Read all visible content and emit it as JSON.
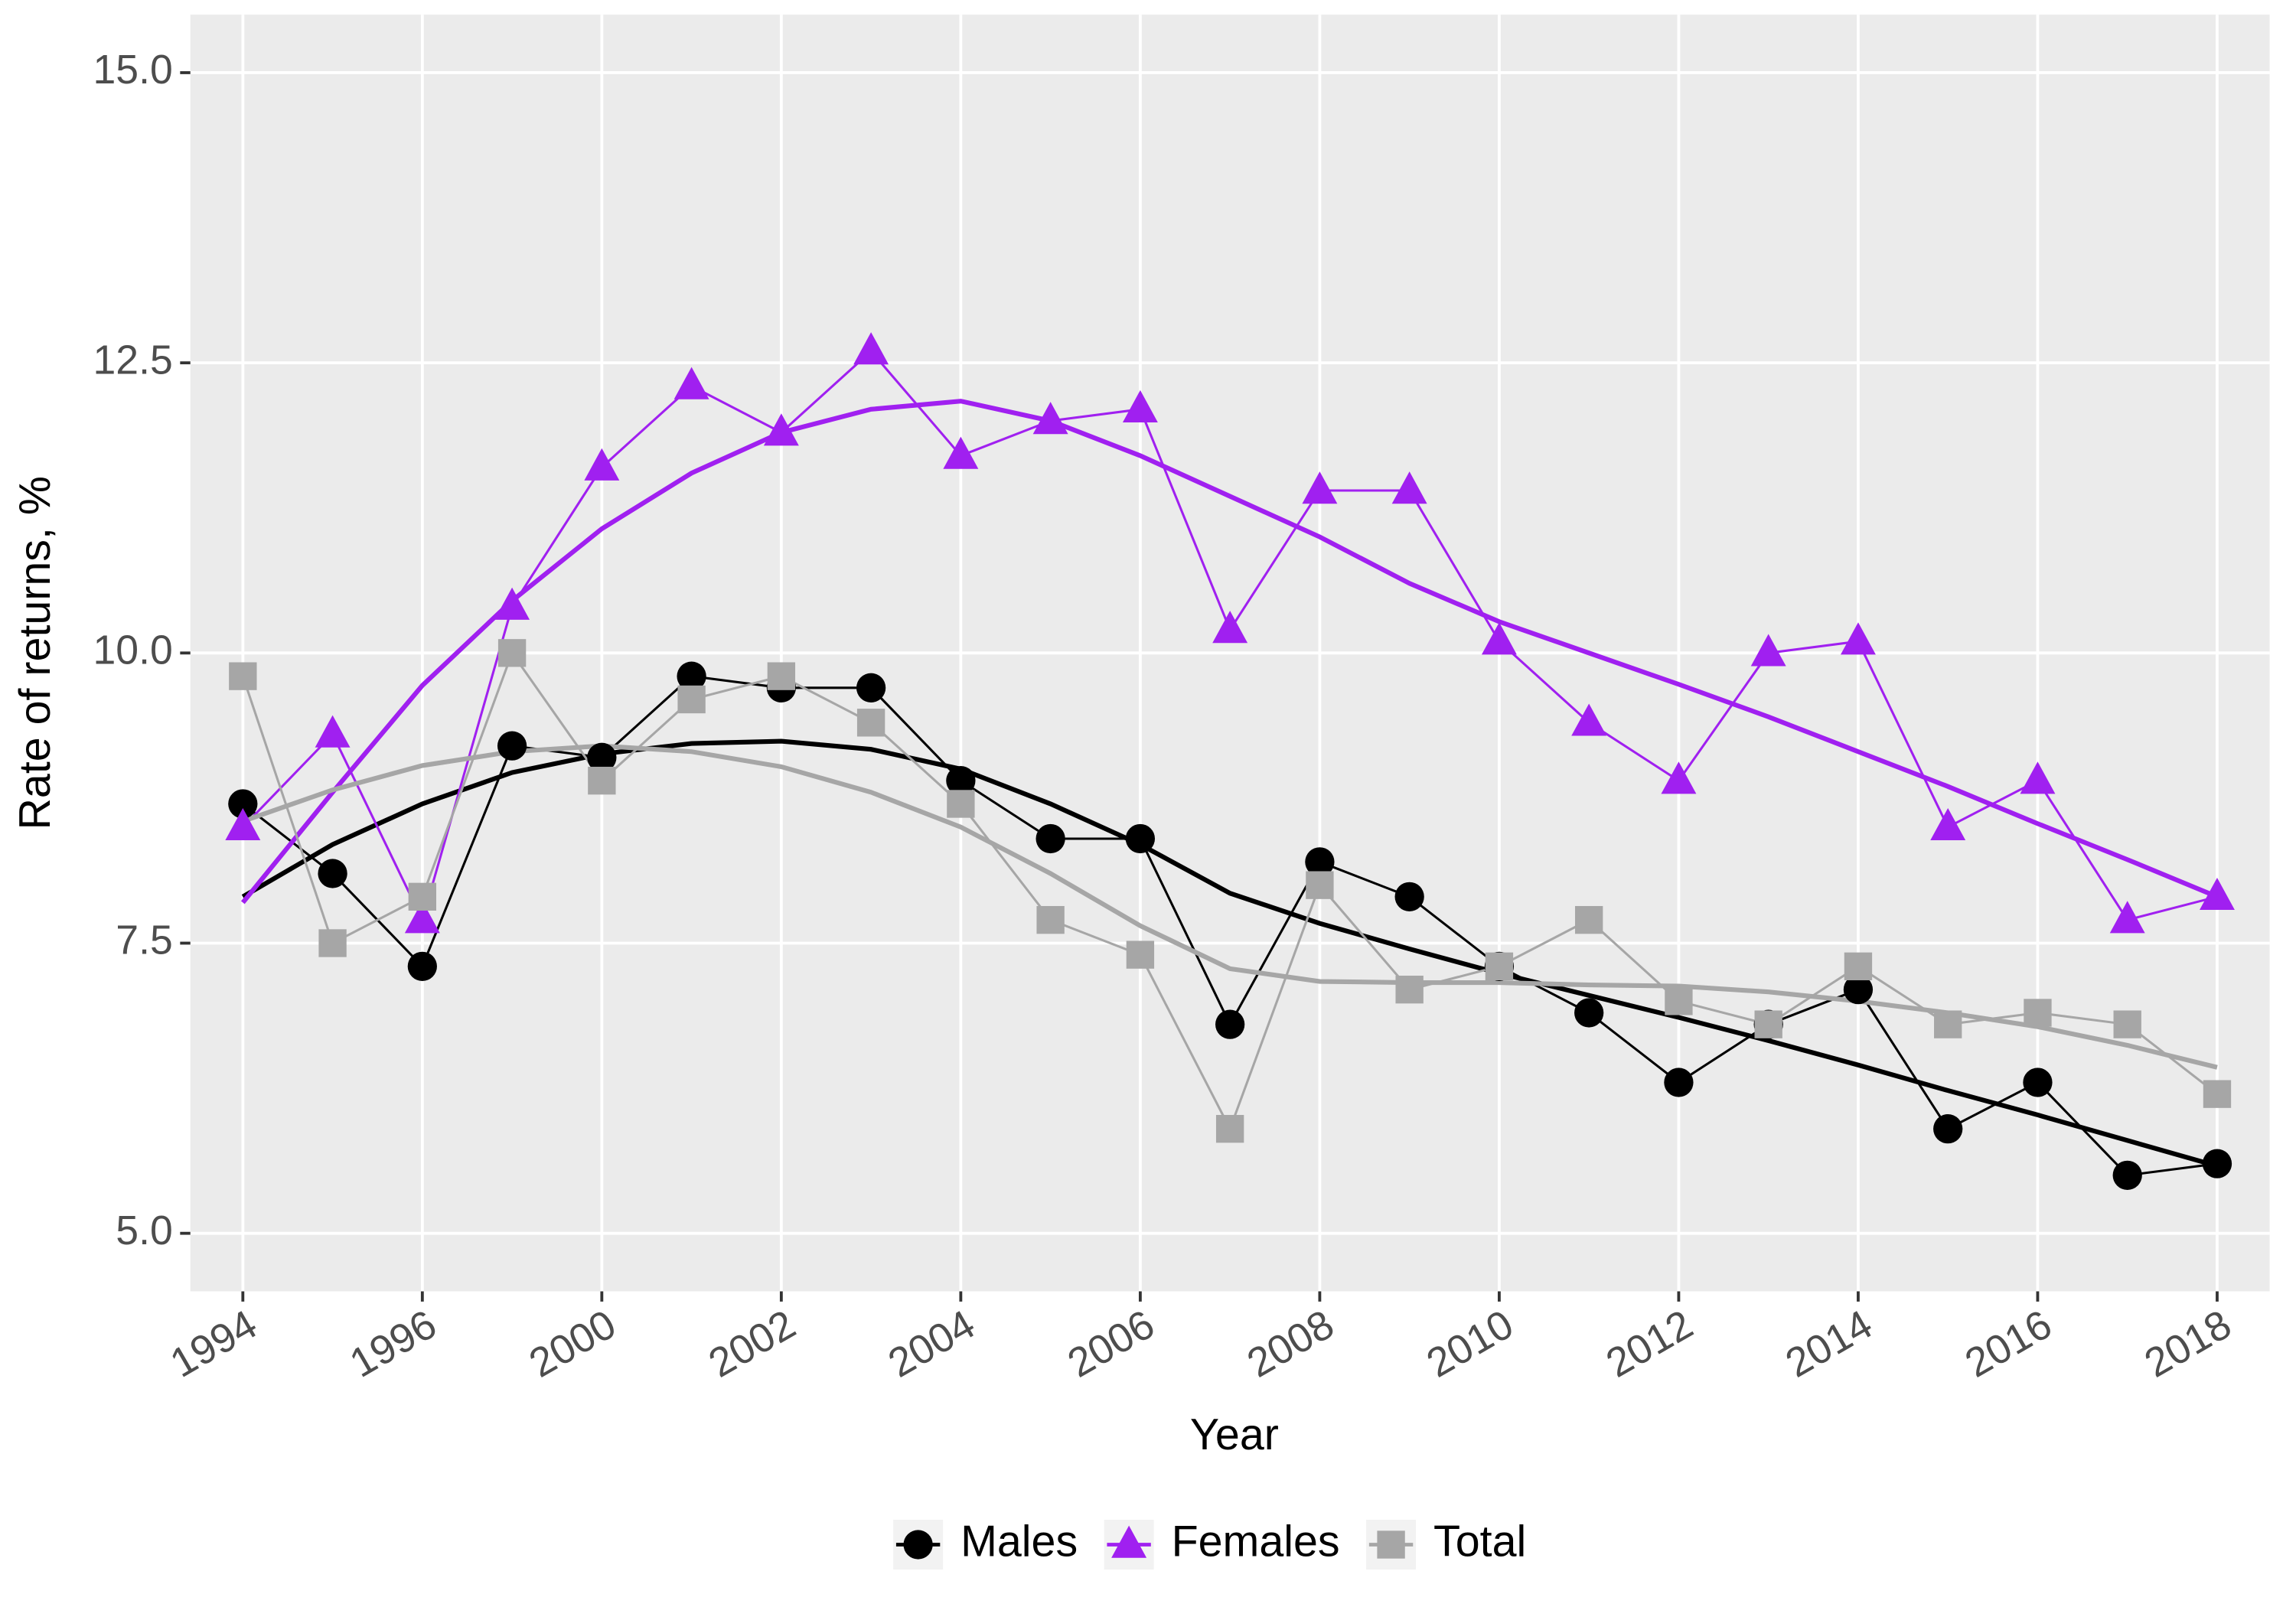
{
  "chart_data": {
    "type": "line",
    "x_label": "Year",
    "y_label": "Rate of returns, %",
    "categories": [
      "1994",
      null,
      "1996",
      null,
      "2000",
      null,
      "2002",
      null,
      "2004",
      null,
      "2006",
      null,
      "2008",
      null,
      "2010",
      null,
      "2012",
      null,
      "2014",
      null,
      "2016",
      null,
      "2018"
    ],
    "ylim": [
      4.5,
      15.5
    ],
    "yticks": [
      {
        "value": 5,
        "label": "5.0"
      },
      {
        "value": 7.5,
        "label": "7.5"
      },
      {
        "value": 10,
        "label": "10.0"
      },
      {
        "value": 12.5,
        "label": "12.5"
      },
      {
        "value": 15,
        "label": "15.0"
      }
    ],
    "grid": true,
    "legend": "bottom",
    "series": [
      {
        "name": "Males",
        "color": "#000000",
        "marker": "circle",
        "values": [
          8.7,
          8.1,
          7.3,
          9.2,
          9.1,
          9.8,
          9.7,
          9.7,
          8.9,
          8.4,
          8.4,
          6.8,
          8.2,
          7.9,
          7.3,
          6.9,
          6.3,
          6.8,
          7.1,
          5.9,
          6.3,
          5.5,
          5.6
        ],
        "trend": [
          7.9,
          8.35,
          8.7,
          8.97,
          9.13,
          9.22,
          9.24,
          9.17,
          9.0,
          8.7,
          8.35,
          7.93,
          7.67,
          7.45,
          7.24,
          7.05,
          6.86,
          6.66,
          6.45,
          6.23,
          6.02,
          5.8,
          5.58
        ]
      },
      {
        "name": "Females",
        "color": "#a020f0",
        "marker": "triangle",
        "values": [
          8.5,
          9.3,
          7.7,
          10.4,
          11.6,
          12.3,
          11.9,
          12.6,
          11.7,
          12.0,
          12.1,
          10.2,
          11.4,
          11.4,
          10.1,
          9.4,
          8.9,
          10.0,
          10.1,
          8.5,
          8.9,
          7.7,
          7.9
        ],
        "trend": [
          7.85,
          8.8,
          9.72,
          10.45,
          11.07,
          11.55,
          11.9,
          12.1,
          12.17,
          12.0,
          11.7,
          11.35,
          11.0,
          10.6,
          10.27,
          10.0,
          9.73,
          9.45,
          9.15,
          8.85,
          8.53,
          8.22,
          7.9
        ]
      },
      {
        "name": "Total",
        "color": "#a6a6a6",
        "marker": "square",
        "values": [
          9.8,
          7.5,
          7.9,
          10.0,
          8.9,
          9.6,
          9.8,
          9.4,
          8.7,
          7.7,
          7.4,
          5.9,
          8.0,
          7.1,
          7.3,
          7.7,
          7.0,
          6.8,
          7.3,
          6.8,
          6.9,
          6.8,
          6.2
        ],
        "trend": [
          8.55,
          8.82,
          9.03,
          9.15,
          9.2,
          9.15,
          9.02,
          8.8,
          8.5,
          8.1,
          7.65,
          7.28,
          7.17,
          7.16,
          7.16,
          7.14,
          7.13,
          7.08,
          7.0,
          6.9,
          6.78,
          6.62,
          6.43
        ]
      }
    ]
  }
}
